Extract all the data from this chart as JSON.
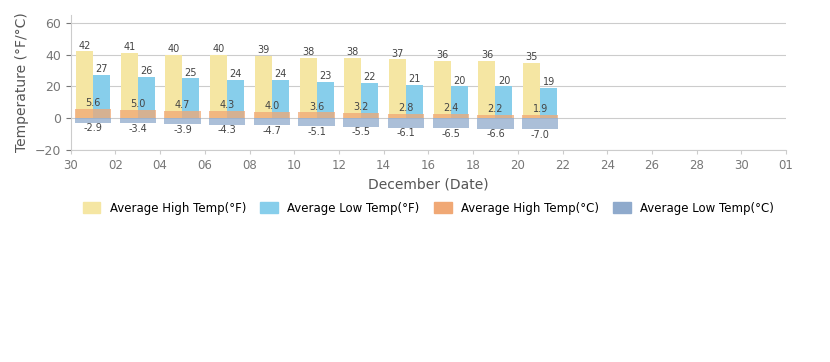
{
  "xlabel": "December (Date)",
  "ylabel": "Temperature (°F/°C)",
  "x_labels": [
    "30",
    "02",
    "04",
    "06",
    "08",
    "10",
    "12",
    "14",
    "16",
    "18",
    "20",
    "22",
    "24",
    "26",
    "28",
    "30",
    "01"
  ],
  "high_f": [
    42,
    41,
    40,
    40,
    39,
    38,
    38,
    37,
    36,
    36,
    35
  ],
  "low_f": [
    27,
    26,
    25,
    24,
    24,
    23,
    22,
    21,
    20,
    20,
    19
  ],
  "high_c": [
    5.6,
    5.0,
    4.7,
    4.3,
    4.0,
    3.6,
    3.2,
    2.8,
    2.4,
    2.2,
    1.9
  ],
  "low_c": [
    -2.9,
    -3.4,
    -3.9,
    -4.3,
    -4.7,
    -5.1,
    -5.5,
    -6.1,
    -6.5,
    -6.6,
    -7.0
  ],
  "color_high_f": "#f5e6a3",
  "color_low_f": "#87ceeb",
  "color_high_c": "#f0a875",
  "color_low_c": "#8faacc",
  "ylim": [
    -20,
    65
  ],
  "yticks": [
    -20,
    0,
    20,
    40,
    60
  ],
  "bg_color": "#ffffff",
  "grid_color": "#cccccc",
  "label_high_f": "Average High Temp(°F)",
  "label_low_f": "Average Low Temp(°F)",
  "label_high_c": "Average High Temp(°C)",
  "label_low_c": "Average Low Temp(°C)"
}
